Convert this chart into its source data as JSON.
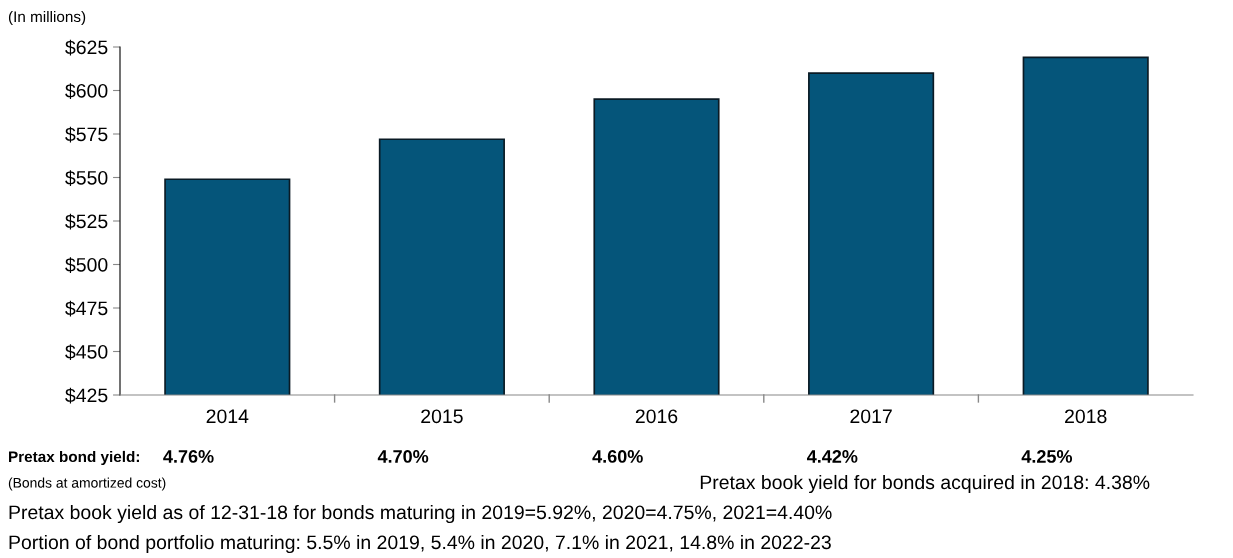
{
  "chart_data": {
    "type": "bar",
    "ylabel": "(In millions)",
    "categories": [
      "2014",
      "2015",
      "2016",
      "2017",
      "2018"
    ],
    "values": [
      549,
      572,
      595,
      610,
      619
    ],
    "color": "#05557a",
    "ylim": [
      425,
      625
    ],
    "yticks": [
      {
        "value": 425,
        "label": "$425"
      },
      {
        "value": 450,
        "label": "$450"
      },
      {
        "value": 475,
        "label": "$475"
      },
      {
        "value": 500,
        "label": "$500"
      },
      {
        "value": 525,
        "label": "$525"
      },
      {
        "value": 550,
        "label": "$550"
      },
      {
        "value": 575,
        "label": "$575"
      },
      {
        "value": 600,
        "label": "$600"
      },
      {
        "value": 625,
        "label": "$625"
      }
    ],
    "grid": false,
    "annotations": [
      "Pretax bond yield:",
      "4.76%",
      "4.70%",
      "4.60%",
      "4.42%",
      "4.25%",
      "(Bonds at amortized cost)",
      "Pretax book yield for bonds acquired in 2018: 4.38%",
      "Pretax book yield as of 12-31-18 for bonds maturing in 2019=5.92%, 2020=4.75%, 2021=4.40%",
      "Portion of bond portfolio maturing: 5.5% in 2019, 5.4% in 2020, 7.1% in 2021, 14.8% in 2022-23"
    ]
  }
}
